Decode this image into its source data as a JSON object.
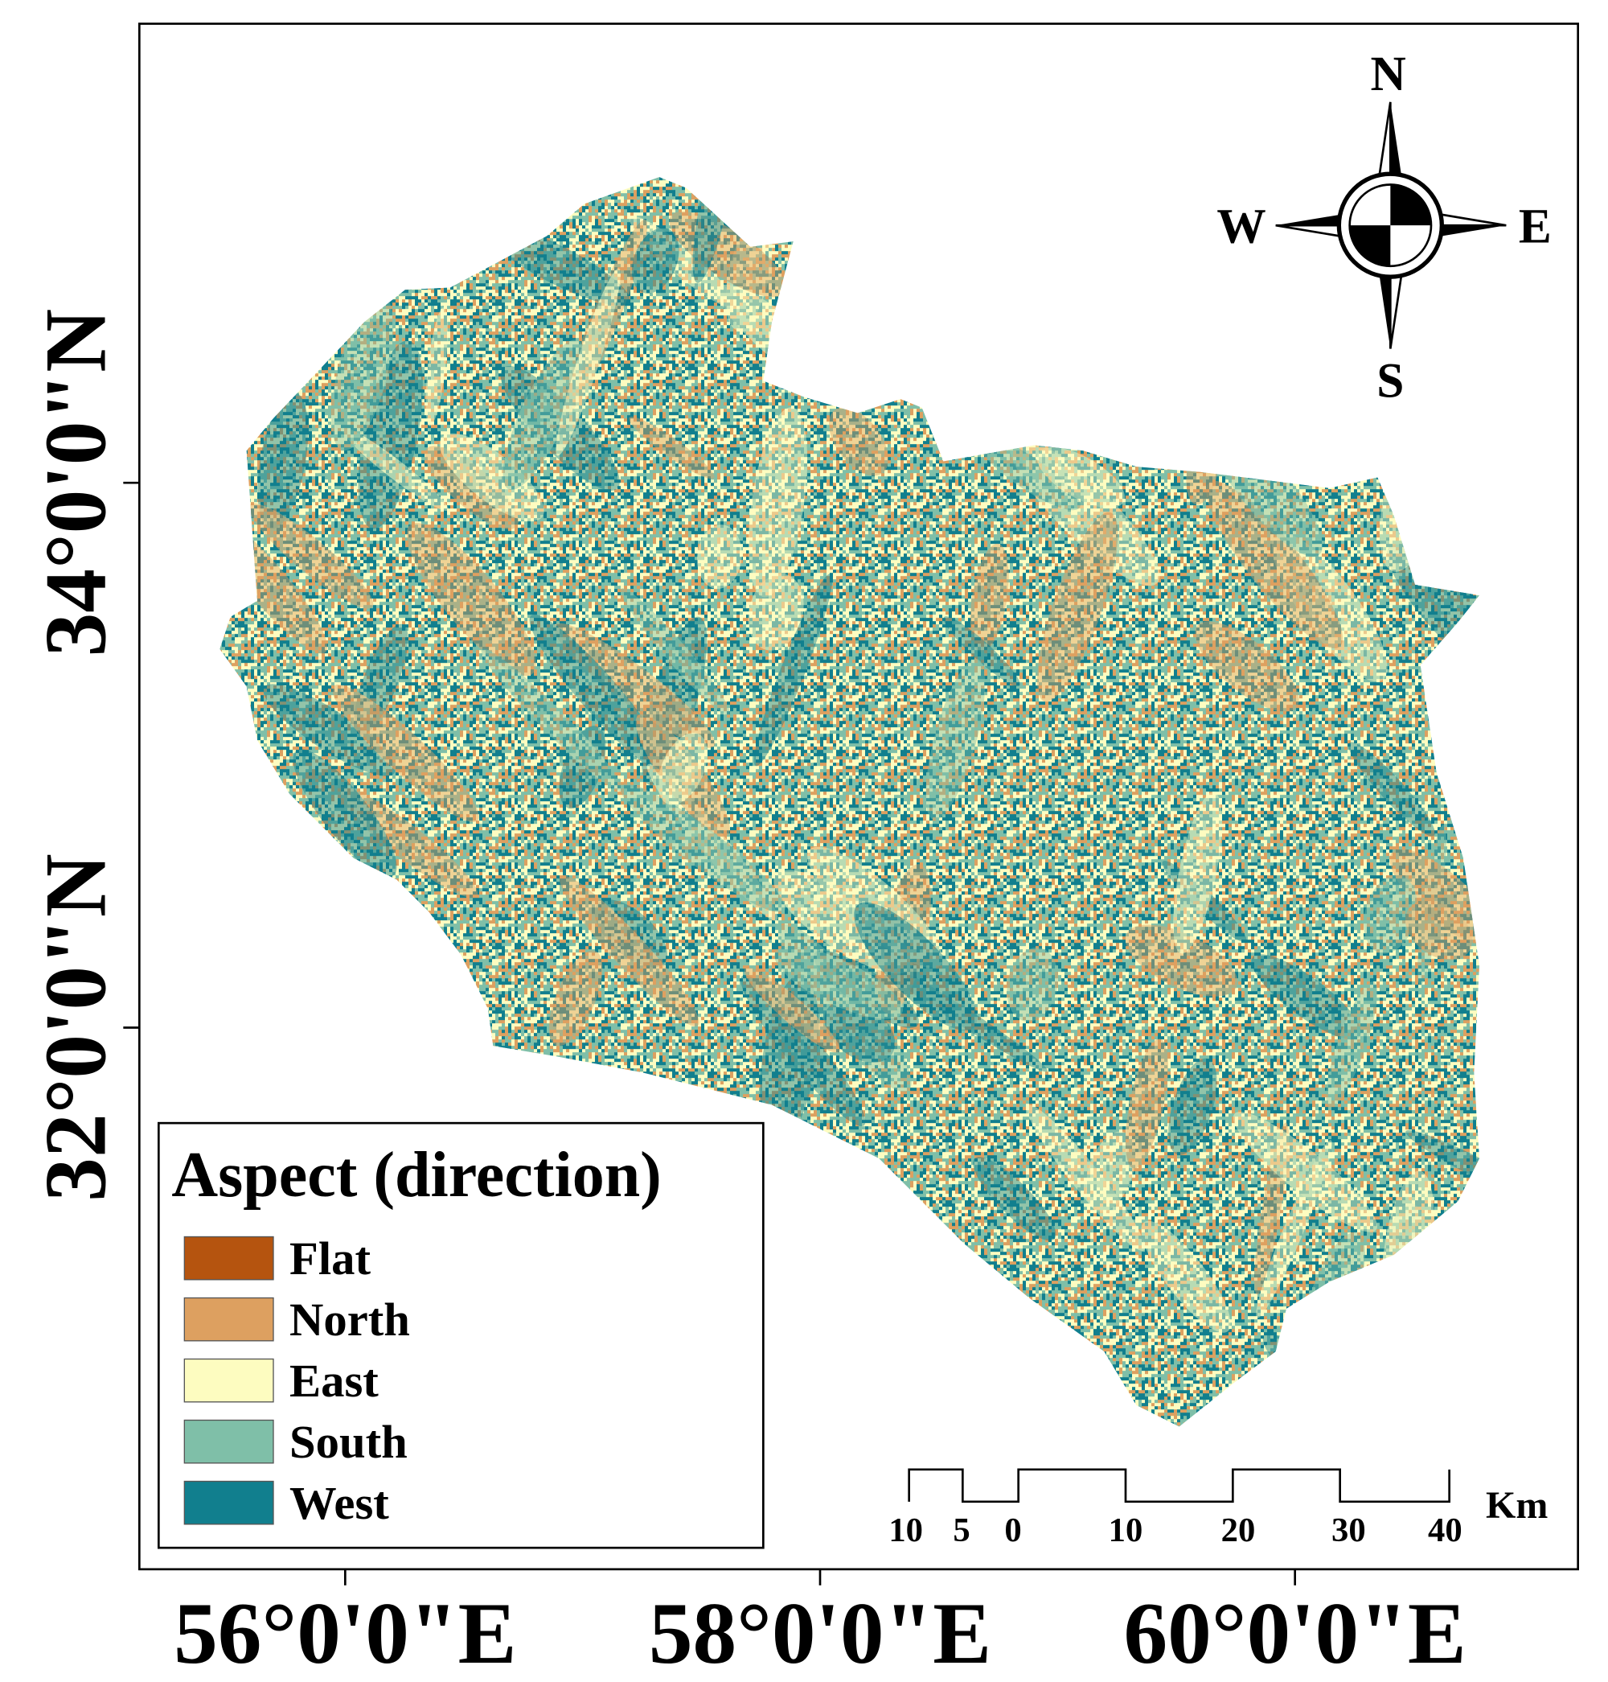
{
  "legend": {
    "title": "Aspect (direction)",
    "items": [
      {
        "label": "Flat",
        "color": "#b5540f"
      },
      {
        "label": "North",
        "color": "#dda060"
      },
      {
        "label": "East",
        "color": "#fdfcc0"
      },
      {
        "label": "South",
        "color": "#7fbfa8"
      },
      {
        "label": "West",
        "color": "#117f8e"
      }
    ]
  },
  "axes": {
    "x_labels": [
      "56°0'0\"E",
      "58°0'0\"E",
      "60°0'0\"E"
    ],
    "y_labels": [
      "34°0'0\"N",
      "32°0'0\"N"
    ]
  },
  "compass": {
    "north": "N",
    "east": "E",
    "south": "S",
    "west": "W"
  },
  "scale_bar": {
    "labels": [
      10,
      5,
      0,
      10,
      20,
      30,
      40
    ],
    "unit": "Km"
  }
}
